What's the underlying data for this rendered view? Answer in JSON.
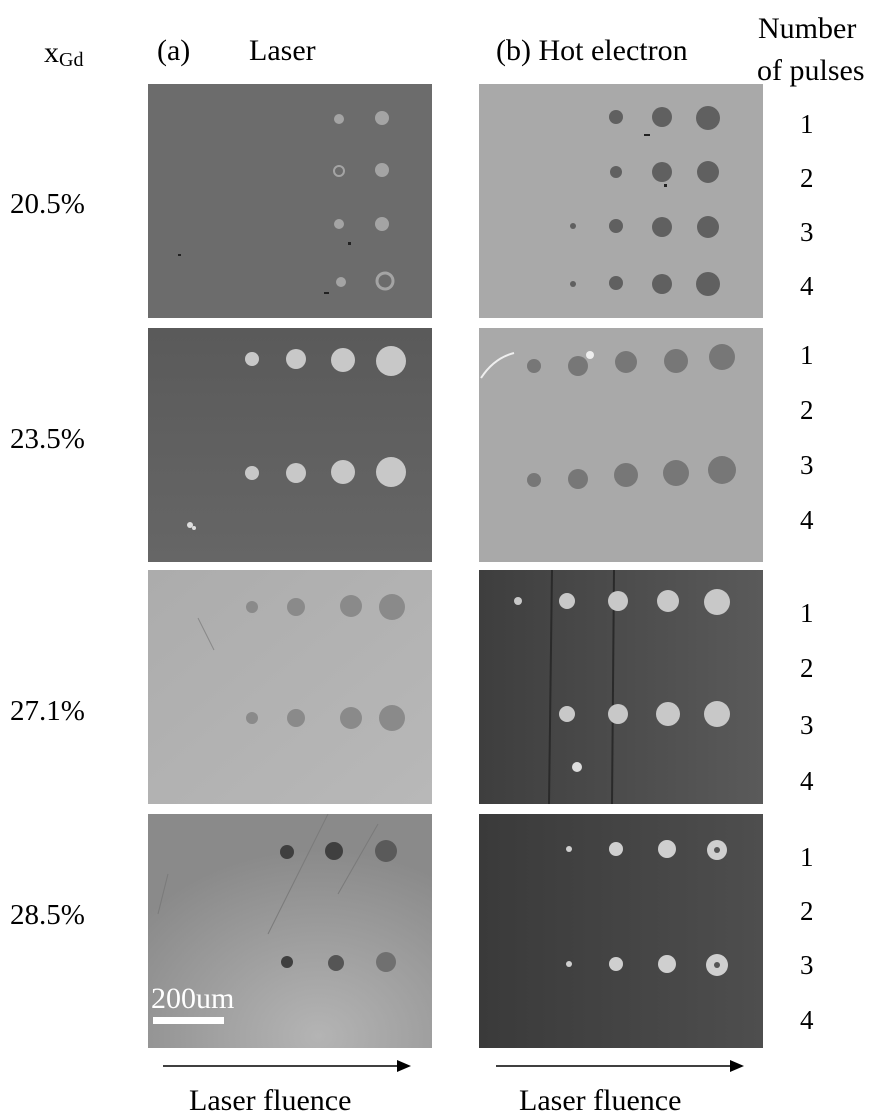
{
  "header": {
    "x_label": "x",
    "x_subscript": "Gd",
    "panel_a_tag": "(a)",
    "panel_a_title": "Laser",
    "panel_b_label": "(b) Hot electron",
    "pulses_line1": "Number",
    "pulses_line2": "of pulses"
  },
  "compositions": [
    "20.5%",
    "23.5%",
    "27.1%",
    "28.5%"
  ],
  "pulse_numbers": [
    "1",
    "2",
    "3",
    "4"
  ],
  "scale_bar": "200um",
  "axis_label": "Laser fluence",
  "colors": {
    "panel_dark": "#5e5e5e",
    "panel_mid": "#7a7a7a",
    "panel_light": "#a8a8a8",
    "spot_light": "#cfcfcf",
    "spot_dark": "#3a3a3a"
  }
}
